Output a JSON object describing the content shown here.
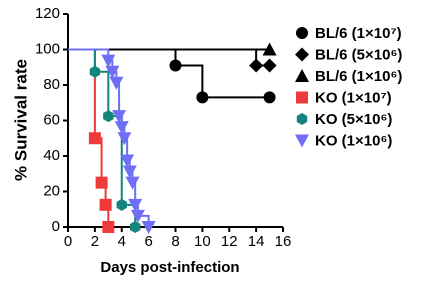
{
  "chart_data": {
    "type": "survival",
    "xlabel": "Days post-infection",
    "ylabel": "% Survival rate",
    "xlim": [
      0,
      16
    ],
    "xticks": [
      0,
      2,
      4,
      6,
      8,
      10,
      12,
      14,
      16
    ],
    "ylim": [
      0,
      120
    ],
    "yticks": [
      0,
      20,
      40,
      60,
      80,
      100,
      120
    ],
    "grid": false,
    "legend": "right",
    "series": [
      {
        "name": "BL/6 (1×10⁷)",
        "color": "#000000",
        "marker": "circle",
        "x": [
          0,
          8,
          10,
          15
        ],
        "values": [
          100,
          91,
          73,
          73
        ]
      },
      {
        "name": "BL/6 (5×10⁶)",
        "color": "#000000",
        "marker": "diamond",
        "x": [
          0,
          14,
          15
        ],
        "values": [
          100,
          91,
          91
        ]
      },
      {
        "name": "BL/6 (1×10⁶)",
        "color": "#000000",
        "marker": "triangle",
        "x": [
          0,
          15
        ],
        "values": [
          100,
          100
        ]
      },
      {
        "name": "KO (1×10⁷)",
        "color": "#ee3a3a",
        "marker": "square",
        "x": [
          0,
          2,
          2.5,
          2.8,
          3
        ],
        "values": [
          100,
          50,
          25,
          12.5,
          0
        ]
      },
      {
        "name": "KO (5×10⁶)",
        "color": "#12857c",
        "marker": "hexagon",
        "x": [
          0,
          2,
          3,
          4,
          5
        ],
        "values": [
          100,
          87.5,
          62.5,
          12.5,
          0
        ]
      },
      {
        "name": "KO (1×10⁶)",
        "color": "#6f6ff5",
        "marker": "triangle-down",
        "x": [
          0,
          3,
          3.3,
          3.6,
          3.8,
          4,
          4.2,
          4.4,
          4.6,
          4.8,
          5,
          5.2,
          6
        ],
        "values": [
          100,
          93.75,
          87.5,
          81.25,
          62.5,
          56.25,
          50,
          37.5,
          31.25,
          25,
          12.5,
          6.25,
          0
        ]
      }
    ]
  }
}
